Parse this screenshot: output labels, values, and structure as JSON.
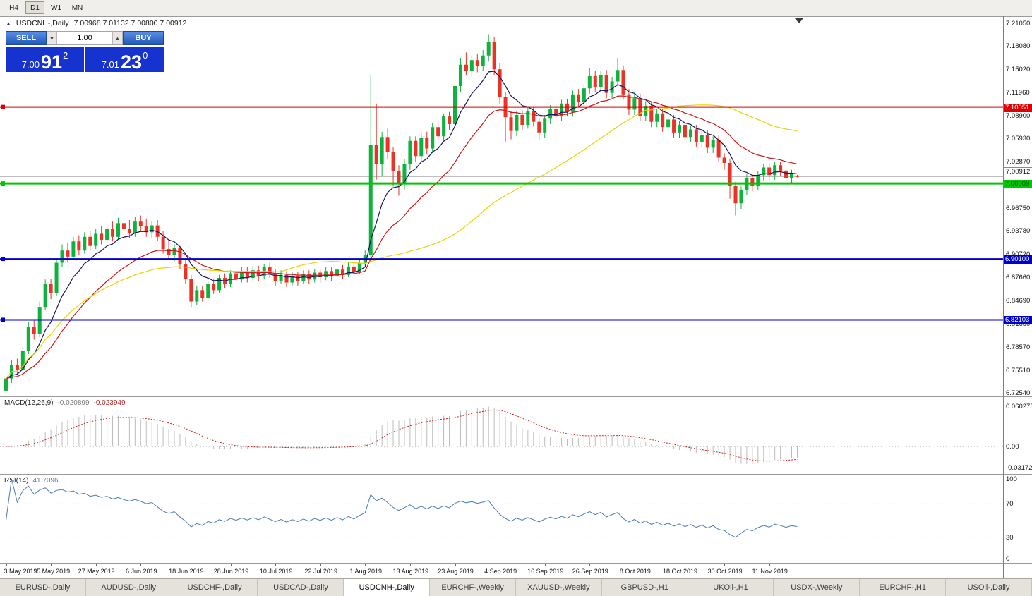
{
  "toolbar": {
    "periods": [
      "H4",
      "D1",
      "W1",
      "MN"
    ],
    "active": "D1"
  },
  "chart": {
    "title_text": "USDCNH-,Daily",
    "ohlc_text": "7.00968 7.01132 7.00800 7.00912",
    "collapse_arrow": "▲"
  },
  "one_click": {
    "sell_label": "SELL",
    "buy_label": "BUY",
    "volume": "1.00",
    "sell_small": "7.00",
    "sell_big": "91",
    "sell_sup": "2",
    "buy_small": "7.01",
    "buy_big": "23",
    "buy_sup": "0"
  },
  "macd": {
    "label": "MACD(12,26,9)",
    "value1": "-0.020899",
    "value2": "-0.023949",
    "axis": [
      "0.060273",
      "0.00",
      "-0.031725"
    ]
  },
  "rsi": {
    "label": "RSI(14)",
    "value": "41.7096",
    "axis": [
      "100",
      "70",
      "30",
      "0"
    ],
    "levels": [
      70,
      30
    ]
  },
  "tabs": {
    "labels": [
      "EURUSD-,Daily",
      "AUDUSD-,Daily",
      "USDCHF-,Daily",
      "USDCAD-,Daily",
      "USDCNH-,Daily",
      "EURCHF-,Weekly",
      "XAUUSD-,Weekly",
      "GBPUSD-,H1",
      "UKOil-,H1",
      "USDX-,Weekly",
      "EURCHF-,H1",
      "USOil-,Daily"
    ],
    "active_index": 4
  },
  "chart_data": {
    "type": "candlestick",
    "symbol": "USDCNH-",
    "timeframe": "Daily",
    "title": "USDCNH-,Daily",
    "ylim": [
      6.7205,
      7.2187
    ],
    "y_ticks": [
      "7.21050",
      "7.18080",
      "7.15020",
      "7.11960",
      "7.08900",
      "7.05930",
      "7.02870",
      "6.99810",
      "6.96750",
      "6.93780",
      "6.90720",
      "6.87660",
      "6.84690",
      "6.81630",
      "6.78570",
      "6.75510",
      "6.72540"
    ],
    "x_labels": [
      "3 May 2019",
      "15 May 2019",
      "27 May 2019",
      "6 Jun 2019",
      "18 Jun 2019",
      "28 Jun 2019",
      "10 Jul 2019",
      "22 Jul 2019",
      "1 Aug 2019",
      "13 Aug 2019",
      "23 Aug 2019",
      "4 Sep 2019",
      "16 Sep 2019",
      "26 Sep 2019",
      "8 Oct 2019",
      "18 Oct 2019",
      "30 Oct 2019",
      "11 Nov 2019"
    ],
    "label_indices": [
      0,
      8,
      16,
      24,
      32,
      40,
      48,
      56,
      64,
      72,
      80,
      88,
      96,
      104,
      112,
      120,
      128,
      136
    ],
    "current_price": {
      "value": 7.00912,
      "label": "7.00912"
    },
    "hlines": [
      {
        "value": 7.10051,
        "label": "7.10051",
        "color": "#dd0000",
        "width": 2,
        "text_color": "#ffffff"
      },
      {
        "value": 7.00009,
        "label": "7.00009",
        "color": "#00c800",
        "width": 3,
        "text_color": "#00380f"
      },
      {
        "value": 6.901,
        "label": "6.90100",
        "color": "#0000cc",
        "width": 2,
        "text_color": "#ffffff"
      },
      {
        "value": 6.82103,
        "label": "6.82103",
        "color": "#0000cc",
        "width": 2,
        "text_color": "#ffffff"
      }
    ],
    "moving_averages": [
      {
        "period": 8,
        "method": "ema",
        "color": "#15155e"
      },
      {
        "period": 20,
        "method": "ema",
        "color": "#cc1515"
      },
      {
        "period": 50,
        "method": "sma",
        "color": "#e8d400"
      }
    ],
    "indicators": [
      {
        "name": "MACD",
        "params": [
          12,
          26,
          9
        ]
      },
      {
        "name": "RSI",
        "params": [
          14
        ]
      }
    ],
    "colors": {
      "up": "#0fb23c",
      "down": "#ea3325",
      "macd_hist": "#bcbcbc",
      "macd_signal": "#cc2222",
      "rsi": "#4a7ab5"
    },
    "candles": [
      [
        6.728,
        6.748,
        6.722,
        6.744
      ],
      [
        6.744,
        6.768,
        6.738,
        6.762
      ],
      [
        6.762,
        6.77,
        6.748,
        6.755
      ],
      [
        6.755,
        6.785,
        6.75,
        6.78
      ],
      [
        6.78,
        6.818,
        6.776,
        6.812
      ],
      [
        6.812,
        6.82,
        6.795,
        6.802
      ],
      [
        6.802,
        6.845,
        6.798,
        6.838
      ],
      [
        6.838,
        6.874,
        6.834,
        6.868
      ],
      [
        6.868,
        6.875,
        6.848,
        6.856
      ],
      [
        6.856,
        6.902,
        6.852,
        6.896
      ],
      [
        6.896,
        6.92,
        6.89,
        6.912
      ],
      [
        6.912,
        6.922,
        6.896,
        6.904
      ],
      [
        6.904,
        6.93,
        6.9,
        6.924
      ],
      [
        6.924,
        6.932,
        6.906,
        6.912
      ],
      [
        6.912,
        6.936,
        6.908,
        6.93
      ],
      [
        6.93,
        6.938,
        6.912,
        6.918
      ],
      [
        6.918,
        6.94,
        6.914,
        6.934
      ],
      [
        6.934,
        6.944,
        6.92,
        6.926
      ],
      [
        6.926,
        6.948,
        6.922,
        6.94
      ],
      [
        6.94,
        6.95,
        6.924,
        6.93
      ],
      [
        6.93,
        6.955,
        6.926,
        6.948
      ],
      [
        6.948,
        6.958,
        6.934,
        6.94
      ],
      [
        6.94,
        6.952,
        6.928,
        6.935
      ],
      [
        6.935,
        6.956,
        6.93,
        6.95
      ],
      [
        6.95,
        6.958,
        6.938,
        6.944
      ],
      [
        6.944,
        6.954,
        6.93,
        6.936
      ],
      [
        6.936,
        6.95,
        6.928,
        6.945
      ],
      [
        6.945,
        6.952,
        6.925,
        6.93
      ],
      [
        6.93,
        6.938,
        6.908,
        6.914
      ],
      [
        6.914,
        6.926,
        6.9,
        6.906
      ],
      [
        6.906,
        6.92,
        6.898,
        6.915
      ],
      [
        6.915,
        6.918,
        6.888,
        6.894
      ],
      [
        6.894,
        6.9,
        6.868,
        6.875
      ],
      [
        6.875,
        6.88,
        6.838,
        6.845
      ],
      [
        6.845,
        6.866,
        6.84,
        6.86
      ],
      [
        6.86,
        6.865,
        6.845,
        6.85
      ],
      [
        6.85,
        6.872,
        6.846,
        6.868
      ],
      [
        6.868,
        6.874,
        6.855,
        6.86
      ],
      [
        6.86,
        6.88,
        6.856,
        6.876
      ],
      [
        6.876,
        6.882,
        6.862,
        6.868
      ],
      [
        6.868,
        6.886,
        6.864,
        6.882
      ],
      [
        6.882,
        6.888,
        6.868,
        6.874
      ],
      [
        6.874,
        6.89,
        6.87,
        6.884
      ],
      [
        6.884,
        6.89,
        6.87,
        6.876
      ],
      [
        6.876,
        6.892,
        6.872,
        6.886
      ],
      [
        6.886,
        6.892,
        6.872,
        6.878
      ],
      [
        6.878,
        6.894,
        6.874,
        6.89
      ],
      [
        6.89,
        6.896,
        6.876,
        6.881
      ],
      [
        6.881,
        6.888,
        6.866,
        6.872
      ],
      [
        6.872,
        6.886,
        6.868,
        6.88
      ],
      [
        6.88,
        6.885,
        6.864,
        6.87
      ],
      [
        6.87,
        6.884,
        6.866,
        6.879
      ],
      [
        6.879,
        6.884,
        6.866,
        6.872
      ],
      [
        6.872,
        6.886,
        6.868,
        6.881
      ],
      [
        6.881,
        6.886,
        6.868,
        6.874
      ],
      [
        6.874,
        6.888,
        6.87,
        6.883
      ],
      [
        6.883,
        6.888,
        6.87,
        6.877
      ],
      [
        6.877,
        6.89,
        6.873,
        6.885
      ],
      [
        6.885,
        6.89,
        6.872,
        6.878
      ],
      [
        6.878,
        6.892,
        6.874,
        6.887
      ],
      [
        6.887,
        6.893,
        6.875,
        6.88
      ],
      [
        6.88,
        6.896,
        6.877,
        6.891
      ],
      [
        6.891,
        6.897,
        6.879,
        6.884
      ],
      [
        6.884,
        6.9,
        6.881,
        6.896
      ],
      [
        6.896,
        6.912,
        6.892,
        6.906
      ],
      [
        6.906,
        7.143,
        6.901,
        7.051
      ],
      [
        7.051,
        7.105,
        7.005,
        7.026
      ],
      [
        7.026,
        7.068,
        7.01,
        7.061
      ],
      [
        7.061,
        7.072,
        7.032,
        7.041
      ],
      [
        7.041,
        7.048,
        6.996,
        7.016
      ],
      [
        7.016,
        7.024,
        6.984,
        7.001
      ],
      [
        7.001,
        7.032,
        6.992,
        7.026
      ],
      [
        7.026,
        7.062,
        7.018,
        7.056
      ],
      [
        7.056,
        7.062,
        7.028,
        7.036
      ],
      [
        7.036,
        7.066,
        7.028,
        7.06
      ],
      [
        7.06,
        7.068,
        7.038,
        7.046
      ],
      [
        7.046,
        7.08,
        7.04,
        7.074
      ],
      [
        7.074,
        7.082,
        7.055,
        7.062
      ],
      [
        7.062,
        7.092,
        7.056,
        7.088
      ],
      [
        7.088,
        7.094,
        7.07,
        7.078
      ],
      [
        7.078,
        7.135,
        7.072,
        7.128
      ],
      [
        7.128,
        7.165,
        7.12,
        7.156
      ],
      [
        7.156,
        7.172,
        7.142,
        7.148
      ],
      [
        7.148,
        7.168,
        7.14,
        7.162
      ],
      [
        7.162,
        7.17,
        7.146,
        7.154
      ],
      [
        7.154,
        7.175,
        7.148,
        7.168
      ],
      [
        7.168,
        7.196,
        7.16,
        7.186
      ],
      [
        7.186,
        7.192,
        7.142,
        7.15
      ],
      [
        7.15,
        7.158,
        7.105,
        7.114
      ],
      [
        7.114,
        7.12,
        7.055,
        7.087
      ],
      [
        7.087,
        7.095,
        7.058,
        7.069
      ],
      [
        7.069,
        7.095,
        7.062,
        7.09
      ],
      [
        7.09,
        7.096,
        7.07,
        7.077
      ],
      [
        7.077,
        7.1,
        7.072,
        7.095
      ],
      [
        7.095,
        7.1,
        7.075,
        7.081
      ],
      [
        7.081,
        7.086,
        7.058,
        7.067
      ],
      [
        7.067,
        7.09,
        7.06,
        7.085
      ],
      [
        7.085,
        7.103,
        7.078,
        7.098
      ],
      [
        7.098,
        7.104,
        7.082,
        7.088
      ],
      [
        7.088,
        7.11,
        7.082,
        7.105
      ],
      [
        7.105,
        7.111,
        7.088,
        7.094
      ],
      [
        7.094,
        7.122,
        7.088,
        7.117
      ],
      [
        7.117,
        7.124,
        7.1,
        7.107
      ],
      [
        7.107,
        7.13,
        7.102,
        7.125
      ],
      [
        7.125,
        7.152,
        7.118,
        7.141
      ],
      [
        7.141,
        7.148,
        7.12,
        7.127
      ],
      [
        7.127,
        7.148,
        7.12,
        7.142
      ],
      [
        7.142,
        7.149,
        7.112,
        7.119
      ],
      [
        7.119,
        7.14,
        7.112,
        7.134
      ],
      [
        7.134,
        7.165,
        7.128,
        7.149
      ],
      [
        7.149,
        7.155,
        7.11,
        7.117
      ],
      [
        7.117,
        7.124,
        7.09,
        7.097
      ],
      [
        7.097,
        7.118,
        7.09,
        7.112
      ],
      [
        7.112,
        7.118,
        7.082,
        7.089
      ],
      [
        7.089,
        7.108,
        7.082,
        7.102
      ],
      [
        7.102,
        7.108,
        7.074,
        7.081
      ],
      [
        7.081,
        7.098,
        7.074,
        7.092
      ],
      [
        7.092,
        7.098,
        7.068,
        7.074
      ],
      [
        7.074,
        7.09,
        7.066,
        7.084
      ],
      [
        7.084,
        7.09,
        7.06,
        7.067
      ],
      [
        7.067,
        7.082,
        7.06,
        7.077
      ],
      [
        7.077,
        7.083,
        7.055,
        7.061
      ],
      [
        7.061,
        7.076,
        7.054,
        7.071
      ],
      [
        7.071,
        7.077,
        7.048,
        7.054
      ],
      [
        7.054,
        7.07,
        7.047,
        7.064
      ],
      [
        7.064,
        7.07,
        7.04,
        7.047
      ],
      [
        7.047,
        7.062,
        7.04,
        7.057
      ],
      [
        7.057,
        7.063,
        7.028,
        7.034
      ],
      [
        7.034,
        7.04,
        7.018,
        7.027
      ],
      [
        7.027,
        7.032,
        6.98,
        6.997
      ],
      [
        6.997,
        7.002,
        6.958,
        6.974
      ],
      [
        6.974,
        6.996,
        6.966,
        6.991
      ],
      [
        6.991,
        7.012,
        6.985,
        7.007
      ],
      [
        7.007,
        7.013,
        6.99,
        6.997
      ],
      [
        6.997,
        7.016,
        6.991,
        7.011
      ],
      [
        7.011,
        7.026,
        7.004,
        7.021
      ],
      [
        7.021,
        7.027,
        7.004,
        7.011
      ],
      [
        7.011,
        7.028,
        7.005,
        7.024
      ],
      [
        7.024,
        7.029,
        7.01,
        7.017
      ],
      [
        7.017,
        7.022,
        7.0,
        7.007
      ],
      [
        7.007,
        7.018,
        7.0,
        7.0135
      ],
      [
        7.00968,
        7.01132,
        7.008,
        7.00912
      ]
    ]
  }
}
